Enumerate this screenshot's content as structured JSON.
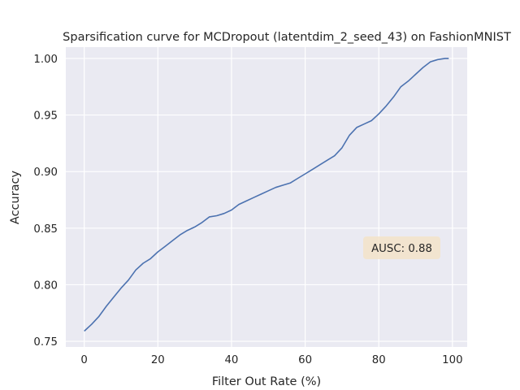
{
  "chart_data": {
    "type": "line",
    "title": "Sparsification curve for MCDropout (latentdim_2_seed_43) on FashionMNIST",
    "xlabel": "Filter Out Rate (%)",
    "ylabel": "Accuracy",
    "xlim": [
      -5,
      104
    ],
    "ylim": [
      0.745,
      1.01
    ],
    "xticks": [
      0,
      20,
      40,
      60,
      80,
      100
    ],
    "yticks": [
      0.75,
      0.8,
      0.85,
      0.9,
      0.95,
      1.0
    ],
    "xtick_labels": [
      "0",
      "20",
      "40",
      "60",
      "80",
      "100"
    ],
    "ytick_labels": [
      "0.75",
      "0.80",
      "0.85",
      "0.90",
      "0.95",
      "1.00"
    ],
    "grid": true,
    "series": [
      {
        "color": "#4c72b0",
        "x": [
          0,
          2,
          4,
          6,
          8,
          10,
          12,
          14,
          16,
          18,
          20,
          22,
          24,
          26,
          28,
          30,
          32,
          34,
          36,
          38,
          40,
          42,
          44,
          46,
          48,
          50,
          52,
          54,
          56,
          58,
          60,
          62,
          64,
          66,
          68,
          70,
          72,
          74,
          76,
          78,
          80,
          82,
          84,
          86,
          88,
          90,
          92,
          94,
          96,
          98,
          99
        ],
        "values": [
          0.759,
          0.765,
          0.772,
          0.781,
          0.789,
          0.797,
          0.804,
          0.813,
          0.819,
          0.823,
          0.829,
          0.834,
          0.839,
          0.844,
          0.848,
          0.851,
          0.855,
          0.86,
          0.861,
          0.863,
          0.866,
          0.871,
          0.874,
          0.877,
          0.88,
          0.883,
          0.886,
          0.888,
          0.89,
          0.894,
          0.898,
          0.902,
          0.906,
          0.91,
          0.914,
          0.921,
          0.932,
          0.939,
          0.942,
          0.945,
          0.951,
          0.958,
          0.966,
          0.975,
          0.98,
          0.986,
          0.992,
          0.997,
          0.999,
          1.0,
          1.0
        ]
      }
    ],
    "annotation": {
      "text": "AUSC: 0.88",
      "background": "#f3e3c9",
      "placement": "lower-right"
    },
    "colors": {
      "plot_background": "#eaeaf2",
      "grid": "#ffffff",
      "text": "#262626"
    }
  }
}
